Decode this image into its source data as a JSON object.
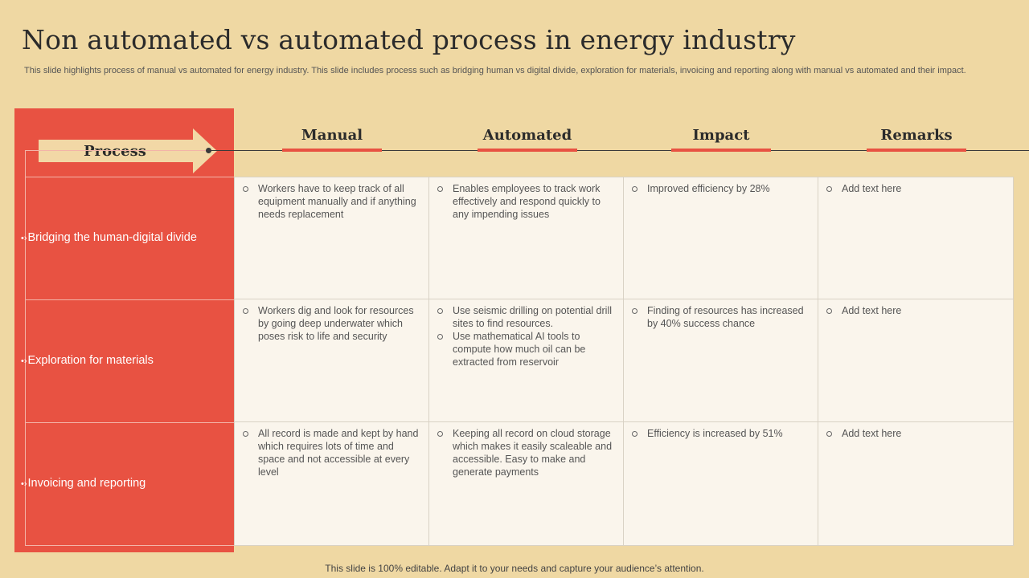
{
  "title": "Non automated vs automated process in energy industry",
  "subtitle": "This slide highlights process of manual vs automated for energy industry. This slide includes process such as bridging human vs digital divide, exploration for materials, invoicing and reporting along with manual vs automated and their impact.",
  "process_header": "Process",
  "columns": [
    "Manual",
    "Automated",
    "Impact",
    "Remarks"
  ],
  "rows": [
    {
      "label": "Bridging the human-digital divide",
      "cells": [
        [
          "Workers have  to keep track of all equipment manually and if anything needs replacement"
        ],
        [
          "Enables employees to track work effectively  and respond quickly to any impending issues"
        ],
        [
          "Improved  efficiency by 28%"
        ],
        [
          "Add text here"
        ]
      ]
    },
    {
      "label": "Exploration for materials",
      "cells": [
        [
          "Workers dig and look for resources by going deep underwater which poses risk to life and security"
        ],
        [
          "Use seismic drilling on potential drill sites to find resources.",
          "Use mathematical AI tools to compute how much oil can be extracted from reservoir"
        ],
        [
          "Finding of resources has increased by 40% success chance"
        ],
        [
          "Add text here"
        ]
      ]
    },
    {
      "label": "Invoicing and reporting",
      "cells": [
        [
          "All record is made and kept by hand which requires lots of time and space and not accessible at every level"
        ],
        [
          "Keeping all record on cloud storage which makes it easily scaleable and accessible. Easy to make and generate payments"
        ],
        [
          "Efficiency is increased by 51%"
        ],
        [
          "Add text here"
        ]
      ]
    }
  ],
  "footer": "This slide is 100% editable. Adapt it to your needs and capture your audience’s attention.",
  "colors": {
    "background": "#efd8a3",
    "accent": "#e85242",
    "cell_bg": "#faf5ec",
    "arrow": "#f2d8a6"
  }
}
